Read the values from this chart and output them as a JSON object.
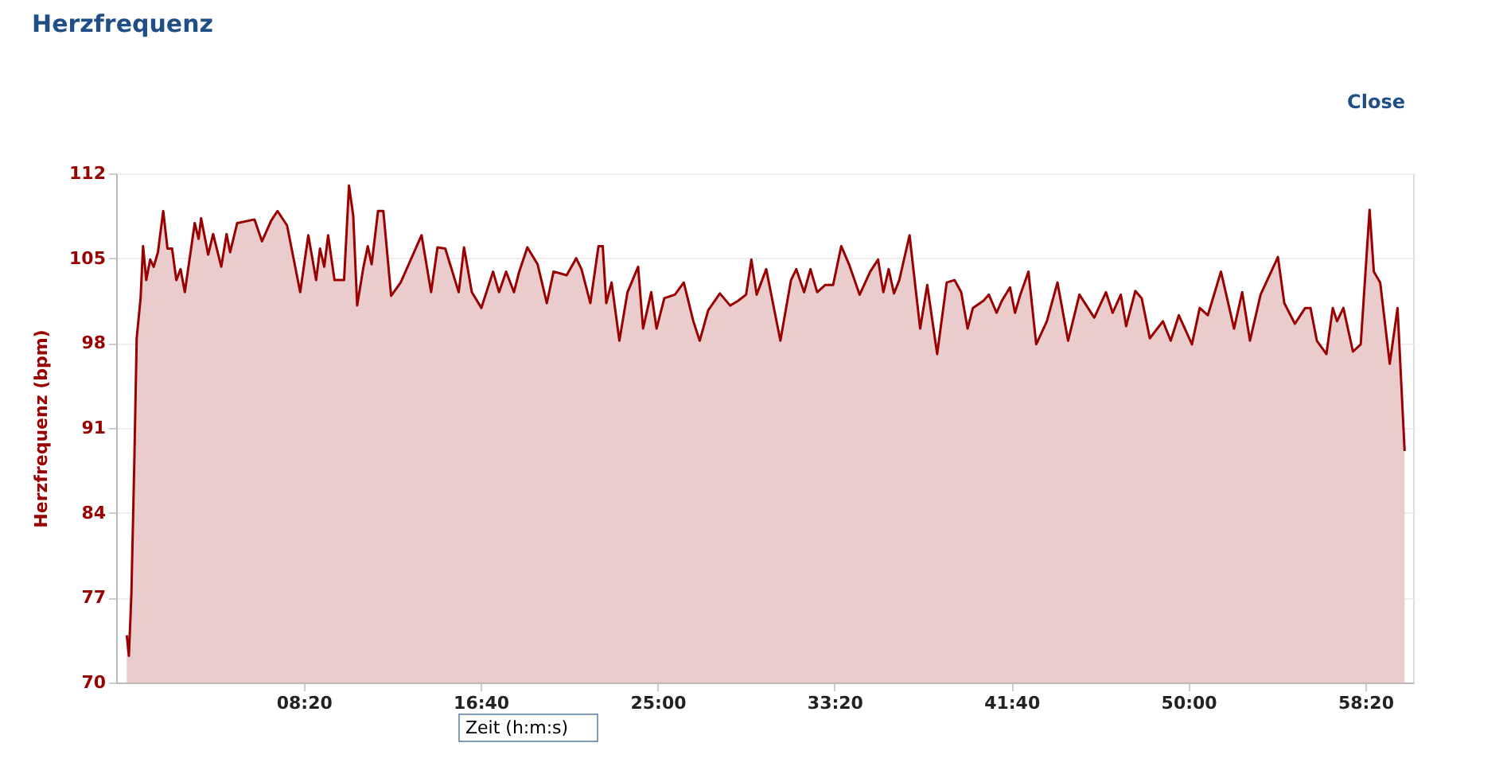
{
  "chart_data": {
    "type": "area",
    "title": "Herzfrequenz",
    "ylabel": "Herzfrequenz (bpm)",
    "xlabel": "Zeit (h:m:s)",
    "annotations": [
      "Close"
    ],
    "xlim": [
      -30,
      3635
    ],
    "ylim": [
      70,
      112
    ],
    "yticks": [
      70,
      77,
      84,
      91,
      98,
      105,
      112
    ],
    "xticks": [
      {
        "value": 500,
        "label": "08:20"
      },
      {
        "value": 1000,
        "label": "16:40"
      },
      {
        "value": 1500,
        "label": "25:00"
      },
      {
        "value": 2000,
        "label": "33:20"
      },
      {
        "value": 2500,
        "label": "41:40"
      },
      {
        "value": 3000,
        "label": "50:00"
      },
      {
        "value": 3500,
        "label": "58:20"
      }
    ],
    "grid": "y",
    "series": [
      {
        "color": "#990000",
        "x": [
          0,
          6,
          13,
          21,
          28,
          39,
          46,
          55,
          66,
          76,
          88,
          103,
          115,
          128,
          140,
          152,
          164,
          192,
          203,
          210,
          230,
          244,
          267,
          282,
          292,
          312,
          361,
          382,
          408,
          426,
          453,
          490,
          513,
          535,
          546,
          558,
          569,
          587,
          614,
          628,
          640,
          651,
          669,
          681,
          692,
          710,
          725,
          747,
          774,
          833,
          860,
          878,
          900,
          938,
          953,
          975,
          1002,
          1035,
          1052,
          1072,
          1094,
          1109,
          1132,
          1161,
          1187,
          1206,
          1243,
          1270,
          1285,
          1310,
          1333,
          1345,
          1355,
          1370,
          1392,
          1415,
          1445,
          1459,
          1482,
          1497,
          1519,
          1549,
          1574,
          1601,
          1619,
          1643,
          1676,
          1705,
          1728,
          1750,
          1765,
          1780,
          1807,
          1847,
          1877,
          1892,
          1914,
          1932,
          1951,
          1974,
          1996,
          2019,
          2041,
          2071,
          2101,
          2123,
          2138,
          2153,
          2168,
          2183,
          2212,
          2242,
          2262,
          2290,
          2317,
          2339,
          2358,
          2376,
          2391,
          2421,
          2436,
          2458,
          2473,
          2496,
          2510,
          2525,
          2548,
          2570,
          2600,
          2630,
          2660,
          2692,
          2734,
          2767,
          2786,
          2809,
          2824,
          2850,
          2868,
          2891,
          2928,
          2950,
          2973,
          3010,
          3032,
          3055,
          3092,
          3129,
          3152,
          3174,
          3204,
          3253,
          3271,
          3301,
          3330,
          3345,
          3363,
          3390,
          3408,
          3420,
          3438,
          3465,
          3487,
          3512,
          3524,
          3542,
          3569,
          3591,
          3611
        ],
        "values": [
          73.9,
          72.2,
          77.3,
          87.8,
          98.4,
          101.7,
          106.0,
          103.2,
          104.9,
          104.3,
          105.5,
          108.9,
          105.8,
          105.8,
          103.2,
          104.1,
          102.2,
          107.9,
          106.6,
          108.3,
          105.3,
          107.0,
          104.3,
          107.0,
          105.5,
          107.9,
          108.2,
          106.4,
          108.1,
          108.9,
          107.7,
          102.2,
          106.9,
          103.2,
          105.8,
          104.3,
          106.9,
          103.2,
          103.2,
          111.0,
          108.5,
          101.1,
          104.3,
          106.0,
          104.5,
          108.9,
          108.9,
          101.9,
          103.0,
          106.9,
          102.2,
          105.9,
          105.8,
          102.2,
          105.9,
          102.2,
          100.9,
          103.9,
          102.2,
          103.9,
          102.2,
          103.9,
          105.9,
          104.5,
          101.3,
          103.9,
          103.6,
          105.0,
          104.1,
          101.3,
          106.0,
          106.0,
          101.3,
          103.0,
          98.2,
          102.2,
          104.3,
          99.2,
          102.2,
          99.2,
          101.7,
          102.0,
          103.0,
          99.8,
          98.2,
          100.7,
          102.1,
          101.1,
          101.5,
          102.0,
          104.9,
          102.0,
          104.1,
          98.2,
          103.2,
          104.1,
          102.2,
          104.1,
          102.2,
          102.8,
          102.8,
          106.0,
          104.5,
          102.0,
          103.9,
          104.9,
          102.2,
          104.1,
          102.1,
          103.2,
          106.9,
          99.2,
          102.8,
          97.1,
          103.0,
          103.2,
          102.2,
          99.2,
          100.9,
          101.5,
          102.0,
          100.5,
          101.5,
          102.6,
          100.5,
          102.0,
          103.9,
          97.9,
          99.8,
          103.0,
          98.2,
          102.0,
          100.1,
          102.2,
          100.5,
          102.0,
          99.4,
          102.3,
          101.7,
          98.4,
          99.8,
          98.2,
          100.3,
          97.9,
          100.9,
          100.3,
          103.9,
          99.2,
          102.2,
          98.2,
          102.0,
          105.1,
          101.3,
          99.6,
          100.9,
          100.9,
          98.2,
          97.1,
          100.9,
          99.8,
          100.9,
          97.3,
          97.9,
          109.0,
          103.9,
          103.0,
          96.3,
          100.9,
          89.1
        ]
      }
    ]
  }
}
